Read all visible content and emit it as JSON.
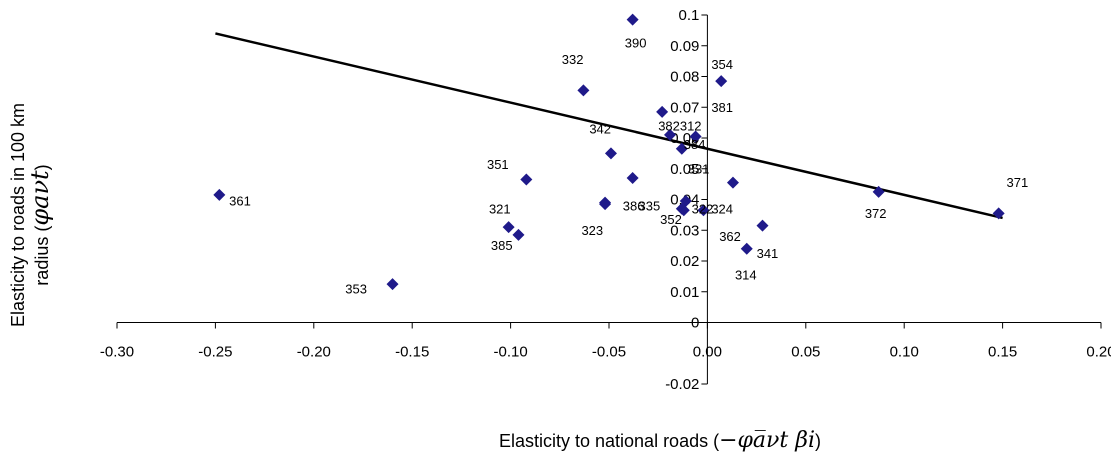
{
  "chart_data": {
    "type": "scatter",
    "title": "",
    "xlabel": "Elasticity to national roads (",
    "xlabel_symbol": "−φa̅νt βi",
    "xlabel_close": ")",
    "ylabel_line1": "Elasticity to roads in 100 km",
    "ylabel_line2": "radius (",
    "ylabel_symbol": "φaνt",
    "ylabel_close": ")",
    "xlim": [
      -0.3,
      0.2
    ],
    "ylim": [
      -0.02,
      0.1
    ],
    "x_ticks": [
      "-0.30",
      "-0.25",
      "-0.20",
      "-0.15",
      "-0.10",
      "-0.05",
      "0.00",
      "0.05",
      "0.10",
      "0.15",
      "0.20"
    ],
    "x_tick_values": [
      -0.3,
      -0.25,
      -0.2,
      -0.15,
      -0.1,
      -0.05,
      0.0,
      0.05,
      0.1,
      0.15,
      0.2
    ],
    "y_ticks": [
      "-0.02",
      "0",
      "0.01",
      "0.02",
      "0.03",
      "0.04",
      "0.05",
      "0.06",
      "0.07",
      "0.08",
      "0.09",
      "0.1"
    ],
    "y_tick_values": [
      -0.02,
      0,
      0.01,
      0.02,
      0.03,
      0.04,
      0.05,
      0.06,
      0.07,
      0.08,
      0.09,
      0.1
    ],
    "marker_color": "#1f1a8a",
    "line_color": "#000000",
    "trendline": {
      "x": [
        -0.25,
        0.15
      ],
      "y": [
        0.094,
        0.034
      ]
    },
    "points": [
      {
        "label": "390",
        "x": -0.038,
        "y": 0.0985
      },
      {
        "label": "354",
        "x": 0.007,
        "y": 0.0785
      },
      {
        "label": "332",
        "x": -0.063,
        "y": 0.0755
      },
      {
        "label": "381",
        "x": -0.023,
        "y": 0.0685
      },
      {
        "label": "382",
        "x": -0.019,
        "y": 0.061
      },
      {
        "label": "312",
        "x": -0.006,
        "y": 0.0605
      },
      {
        "label": "342",
        "x": -0.049,
        "y": 0.055
      },
      {
        "label": "384",
        "x": -0.013,
        "y": 0.0565
      },
      {
        "label": "331",
        "x": -0.038,
        "y": 0.047
      },
      {
        "label": "351",
        "x": -0.092,
        "y": 0.0465
      },
      {
        "label": "361",
        "x": -0.248,
        "y": 0.0415
      },
      {
        "label": "335",
        "x": -0.011,
        "y": 0.0395
      },
      {
        "label": "386",
        "x": -0.052,
        "y": 0.039
      },
      {
        "label": "322",
        "x": -0.012,
        "y": 0.0365
      },
      {
        "label": "352",
        "x": -0.013,
        "y": 0.037
      },
      {
        "label": "324",
        "x": -0.002,
        "y": 0.0365
      },
      {
        "label": "331b",
        "x": 0.013,
        "y": 0.0455
      },
      {
        "label": "372",
        "x": 0.087,
        "y": 0.0425
      },
      {
        "label": "371",
        "x": 0.148,
        "y": 0.0355
      },
      {
        "label": "321",
        "x": -0.101,
        "y": 0.031
      },
      {
        "label": "385",
        "x": -0.096,
        "y": 0.0285
      },
      {
        "label": "323",
        "x": -0.052,
        "y": 0.0385
      },
      {
        "label": "362",
        "x": 0.028,
        "y": 0.0315
      },
      {
        "label": "341",
        "x": 0.02,
        "y": 0.024
      },
      {
        "label": "353",
        "x": -0.16,
        "y": 0.0125
      }
    ],
    "point_labels": [
      {
        "text": "390",
        "x": -0.042,
        "y": 0.0895
      },
      {
        "text": "354",
        "x": 0.002,
        "y": 0.0825
      },
      {
        "text": "332",
        "x": -0.074,
        "y": 0.084
      },
      {
        "text": "381",
        "x": 0.002,
        "y": 0.0685
      },
      {
        "text": "382",
        "x": -0.025,
        "y": 0.0625
      },
      {
        "text": "312",
        "x": -0.014,
        "y": 0.0625
      },
      {
        "text": "342",
        "x": -0.06,
        "y": 0.0615
      },
      {
        "text": "384",
        "x": -0.012,
        "y": 0.0565
      },
      {
        "text": "331",
        "x": -0.01,
        "y": 0.0485
      },
      {
        "text": "351",
        "x": -0.112,
        "y": 0.05
      },
      {
        "text": "361",
        "x": -0.243,
        "y": 0.038
      },
      {
        "text": "335",
        "x": -0.035,
        "y": 0.0365
      },
      {
        "text": "386",
        "x": -0.043,
        "y": 0.0365
      },
      {
        "text": "322",
        "x": -0.008,
        "y": 0.0355
      },
      {
        "text": "352",
        "x": -0.024,
        "y": 0.032
      },
      {
        "text": "324",
        "x": 0.002,
        "y": 0.0355
      },
      {
        "text": "372",
        "x": 0.08,
        "y": 0.034
      },
      {
        "text": "371",
        "x": 0.152,
        "y": 0.044
      },
      {
        "text": "321",
        "x": -0.111,
        "y": 0.0355
      },
      {
        "text": "385",
        "x": -0.11,
        "y": 0.0235
      },
      {
        "text": "323",
        "x": -0.064,
        "y": 0.0285
      },
      {
        "text": "362",
        "x": 0.006,
        "y": 0.0265
      },
      {
        "text": "341",
        "x": 0.025,
        "y": 0.021
      },
      {
        "text": "314",
        "x": 0.014,
        "y": 0.014
      },
      {
        "text": "353",
        "x": -0.184,
        "y": 0.0095
      }
    ]
  }
}
